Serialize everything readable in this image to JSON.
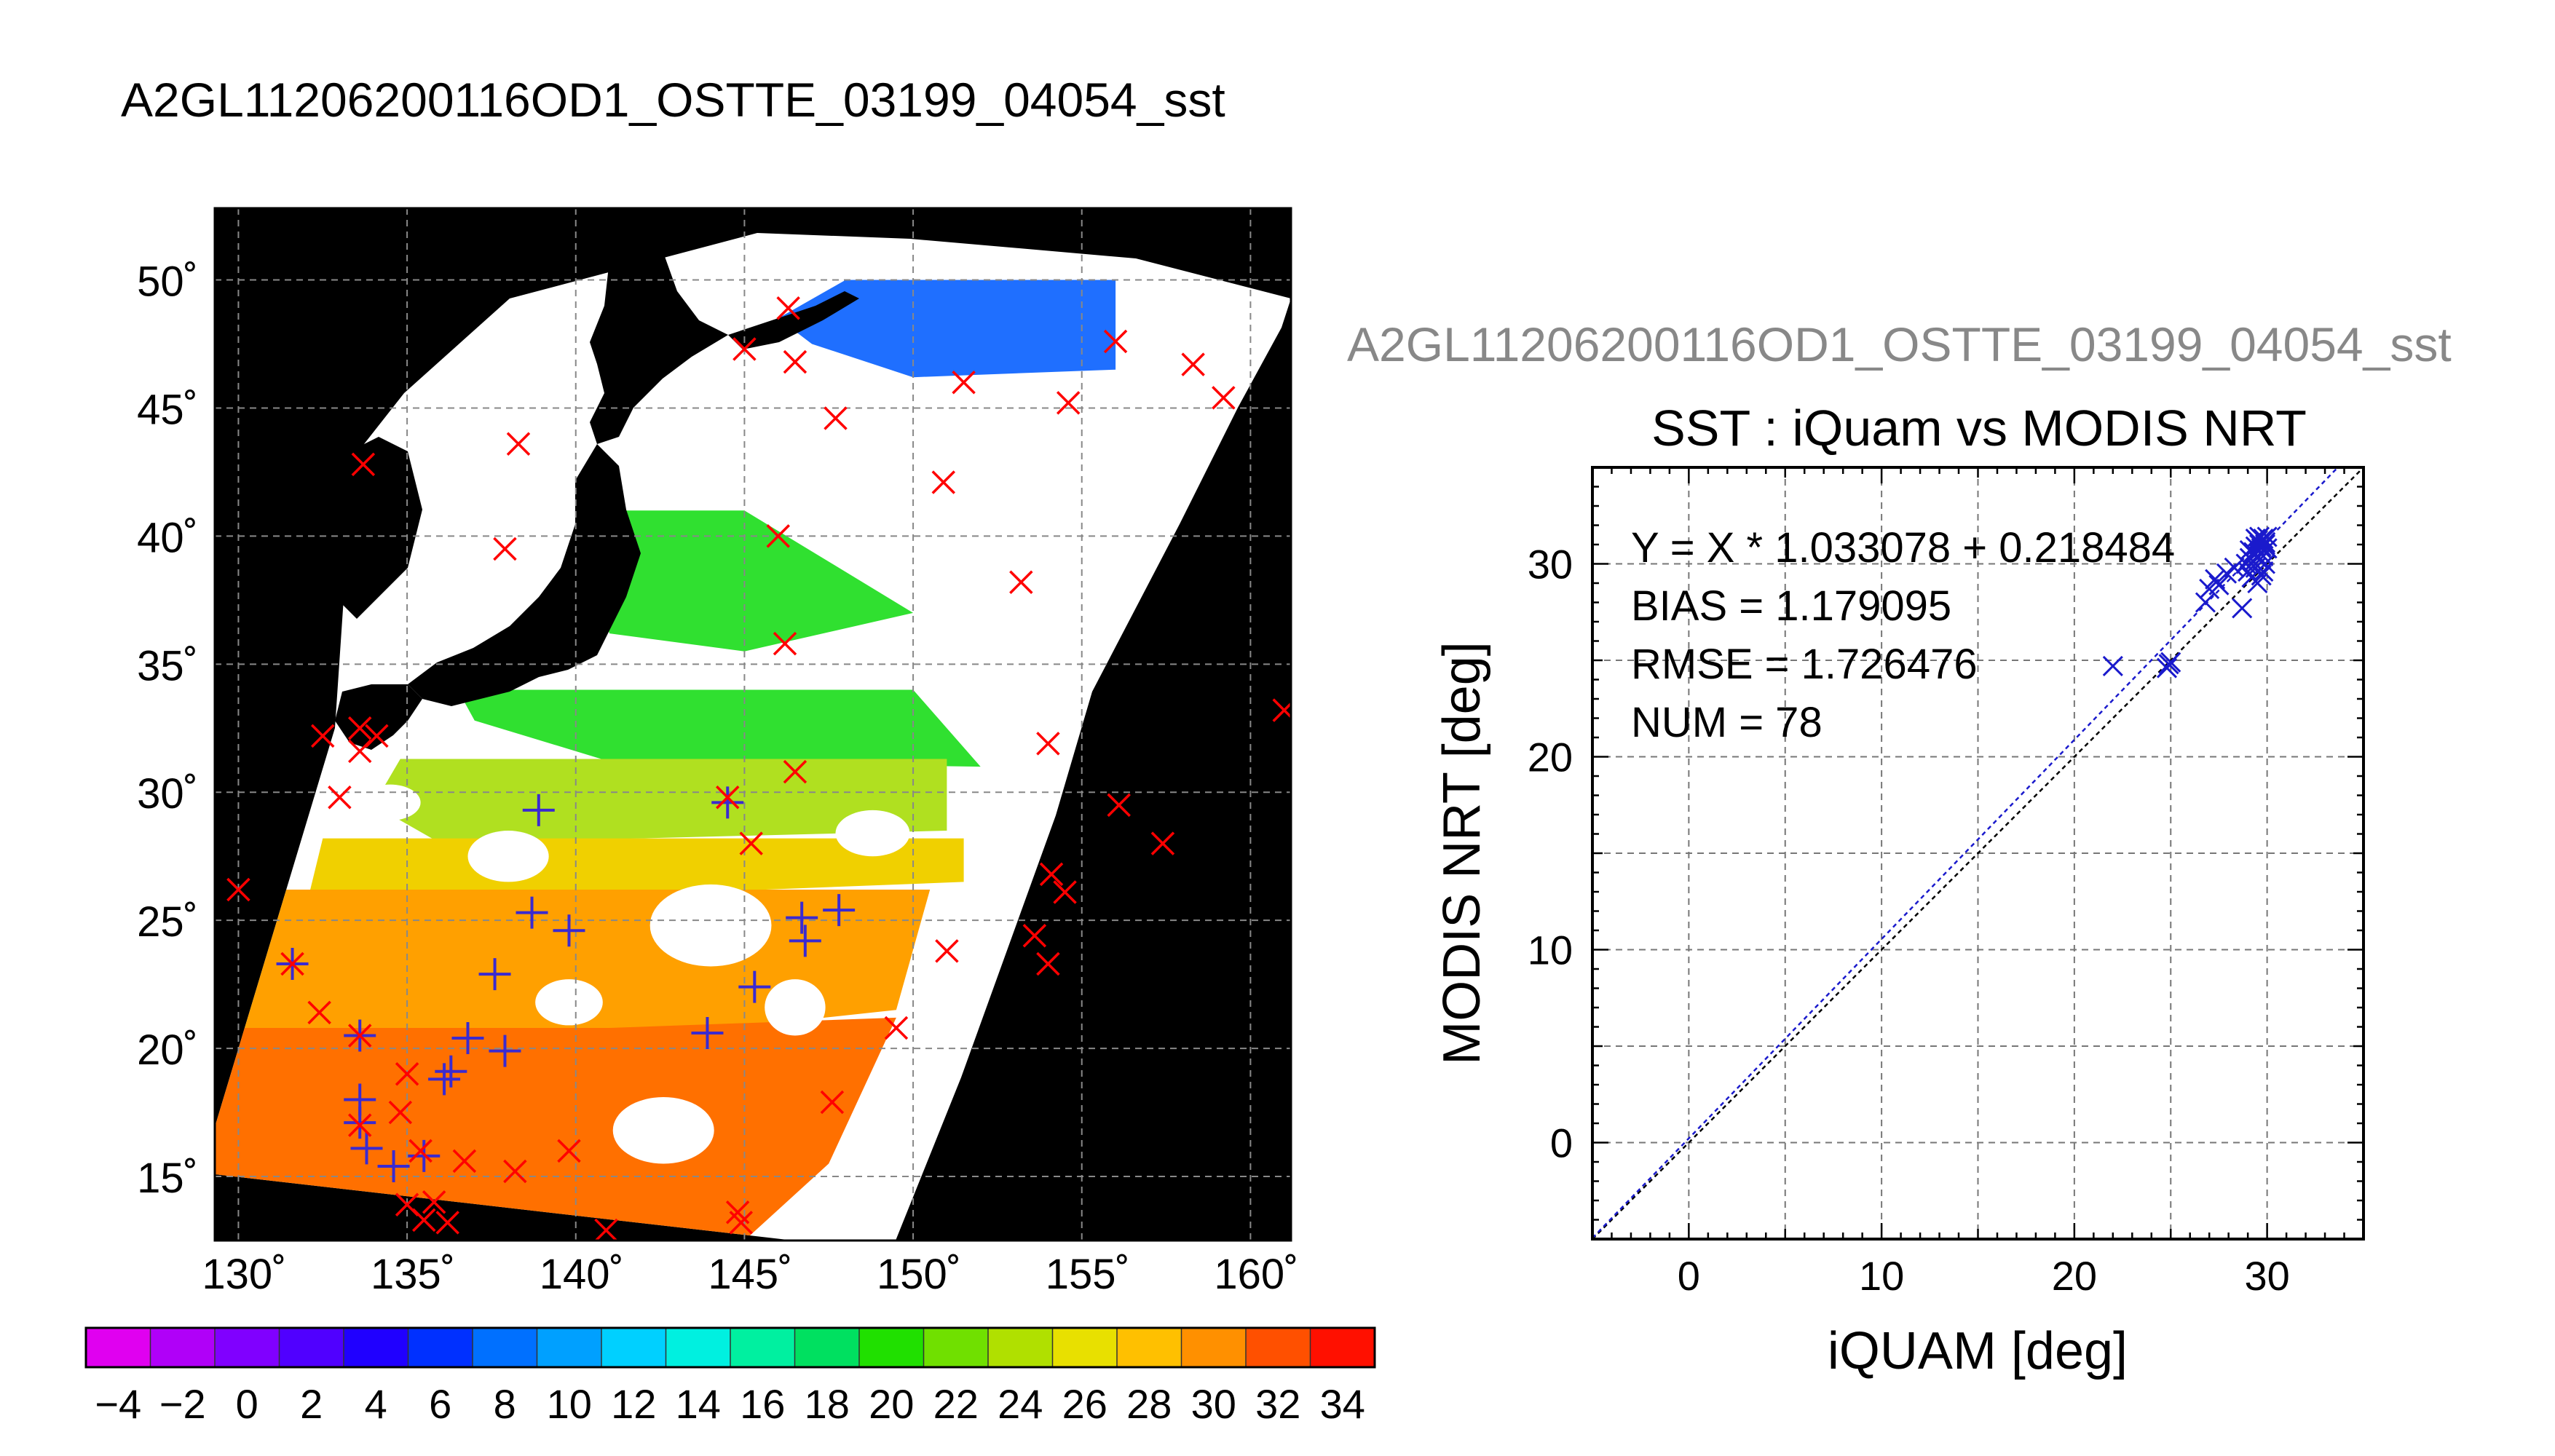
{
  "figure_title": "A2GL11206200116OD1_OSTTE_03199_04054_sst",
  "chart_data": [
    {
      "type": "heatmap",
      "description_kind": "map",
      "title": "",
      "lon_ticks": [
        "130˚",
        "135˚",
        "140˚",
        "145˚",
        "150˚",
        "155˚",
        "160˚"
      ],
      "lat_ticks": [
        "50˚",
        "45˚",
        "40˚",
        "35˚",
        "30˚",
        "25˚",
        "20˚",
        "15˚"
      ],
      "lon_values": [
        130,
        135,
        140,
        145,
        150,
        155,
        160
      ],
      "lat_values": [
        50,
        45,
        40,
        35,
        30,
        25,
        20,
        15
      ],
      "xlim": [
        129.3,
        161.2
      ],
      "ylim": [
        12.5,
        52.8
      ],
      "grid": true,
      "colorbar": {
        "ticks": [
          "−4",
          "−2",
          "0",
          "2",
          "4",
          "6",
          "8",
          "10",
          "12",
          "14",
          "16",
          "18",
          "20",
          "22",
          "24",
          "26",
          "28",
          "30",
          "32",
          "34"
        ],
        "range": [
          -5,
          35
        ],
        "colors": [
          "#e000f0",
          "#b000f8",
          "#8000ff",
          "#5000ff",
          "#2000ff",
          "#0030ff",
          "#0070ff",
          "#00a0ff",
          "#00d0ff",
          "#00f0e0",
          "#00f0a0",
          "#00e060",
          "#20e000",
          "#70e000",
          "#b0e000",
          "#e8e000",
          "#ffc000",
          "#ff9000",
          "#ff5000",
          "#ff1000"
        ]
      },
      "sst_bands": [
        {
          "name": "north_blue",
          "color": "#1f6fff"
        },
        {
          "name": "green",
          "color": "#30e030"
        },
        {
          "name": "yellow_green",
          "color": "#b0e020"
        },
        {
          "name": "yellow",
          "color": "#f0d000"
        },
        {
          "name": "orange",
          "color": "#ffa000"
        },
        {
          "name": "dark_orange",
          "color": "#ff7000"
        }
      ],
      "red_markers": [
        [
          145.0,
          47.3
        ],
        [
          146.3,
          48.9
        ],
        [
          146.5,
          46.8
        ],
        [
          147.7,
          44.6
        ],
        [
          151.5,
          46.0
        ],
        [
          156.0,
          47.6
        ],
        [
          158.3,
          46.7
        ],
        [
          159.2,
          45.4
        ],
        [
          154.6,
          45.2
        ],
        [
          133.7,
          42.8
        ],
        [
          138.3,
          43.6
        ],
        [
          137.9,
          39.5
        ],
        [
          146.0,
          40.0
        ],
        [
          150.9,
          42.1
        ],
        [
          153.2,
          38.2
        ],
        [
          146.2,
          35.8
        ],
        [
          132.5,
          32.2
        ],
        [
          133.6,
          32.5
        ],
        [
          134.1,
          32.2
        ],
        [
          133.6,
          31.6
        ],
        [
          133.0,
          29.8
        ],
        [
          144.5,
          29.8
        ],
        [
          146.5,
          30.8
        ],
        [
          145.2,
          28.0
        ],
        [
          154.0,
          31.9
        ],
        [
          156.1,
          29.5
        ],
        [
          157.4,
          28.0
        ],
        [
          154.1,
          26.8
        ],
        [
          154.5,
          26.1
        ],
        [
          153.6,
          24.4
        ],
        [
          151.0,
          23.8
        ],
        [
          154.0,
          23.3
        ],
        [
          161.0,
          33.2
        ],
        [
          130.0,
          26.2
        ],
        [
          131.6,
          23.3
        ],
        [
          132.4,
          21.4
        ],
        [
          149.5,
          20.8
        ],
        [
          147.6,
          17.9
        ],
        [
          133.6,
          20.5
        ],
        [
          135.0,
          19.0
        ],
        [
          134.8,
          17.5
        ],
        [
          133.6,
          17.0
        ],
        [
          135.4,
          16.0
        ],
        [
          136.7,
          15.6
        ],
        [
          138.2,
          15.2
        ],
        [
          139.8,
          16.0
        ],
        [
          135.0,
          13.9
        ],
        [
          135.5,
          13.3
        ],
        [
          136.2,
          13.2
        ],
        [
          135.8,
          14.0
        ],
        [
          140.9,
          12.9
        ],
        [
          144.9,
          13.2
        ],
        [
          144.8,
          13.6
        ]
      ],
      "purple_markers": [
        [
          138.9,
          29.3
        ],
        [
          144.5,
          29.6
        ],
        [
          138.7,
          25.3
        ],
        [
          139.8,
          24.6
        ],
        [
          146.7,
          25.1
        ],
        [
          146.8,
          24.2
        ],
        [
          147.8,
          25.4
        ],
        [
          137.6,
          22.9
        ],
        [
          145.3,
          22.4
        ],
        [
          143.9,
          20.6
        ],
        [
          133.6,
          20.5
        ],
        [
          136.8,
          20.4
        ],
        [
          137.9,
          19.9
        ],
        [
          136.3,
          19.1
        ],
        [
          136.1,
          18.8
        ],
        [
          133.6,
          18.0
        ],
        [
          133.6,
          17.1
        ],
        [
          133.8,
          16.1
        ],
        [
          134.6,
          15.4
        ],
        [
          135.5,
          15.8
        ],
        [
          131.6,
          23.3
        ]
      ]
    },
    {
      "type": "scatter",
      "subtitle": "A2GL11206200116OD1_OSTTE_03199_04054_sst",
      "title": "SST : iQuam vs MODIS NRT",
      "xlabel": "iQUAM [deg]",
      "ylabel": "MODIS NRT [deg]",
      "xlim": [
        -5,
        35
      ],
      "ylim": [
        -5,
        35
      ],
      "x_ticks": [
        "0",
        "10",
        "20",
        "30"
      ],
      "y_ticks": [
        "0",
        "10",
        "20",
        "30"
      ],
      "tick_values": [
        0,
        10,
        20,
        30
      ],
      "grid_values": [
        5,
        15,
        25
      ],
      "grid": true,
      "stats": [
        "Y = X * 1.033078 + 0.218484",
        "BIAS = 1.179095",
        "RMSE = 1.726476",
        "NUM = 78"
      ],
      "fit": {
        "slope": 1.033078,
        "intercept": 0.218484
      },
      "points": {
        "x": [
          22.0,
          24.8,
          25.0,
          24.9,
          26.8,
          27.0,
          27.3,
          27.5,
          27.9,
          28.3,
          28.7,
          28.9,
          29.0,
          29.1,
          29.3,
          29.4,
          29.5,
          29.6,
          29.7,
          29.8,
          29.9,
          30.0,
          29.2,
          29.4,
          29.6,
          29.8,
          29.9,
          30.0,
          29.5,
          29.7,
          29.3,
          29.6,
          29.8,
          29.1,
          29.5,
          29.9,
          29.7,
          29.4
        ],
        "y": [
          24.7,
          24.6,
          24.9,
          24.8,
          28.0,
          28.7,
          29.2,
          28.9,
          29.5,
          29.8,
          27.7,
          30.0,
          29.6,
          30.3,
          30.6,
          30.9,
          31.2,
          31.0,
          30.8,
          31.3,
          31.1,
          30.8,
          29.3,
          29.8,
          30.2,
          30.4,
          30.0,
          31.4,
          29.0,
          30.9,
          30.1,
          31.4,
          29.6,
          30.7,
          30.4,
          31.0,
          29.4,
          31.3
        ]
      }
    }
  ]
}
